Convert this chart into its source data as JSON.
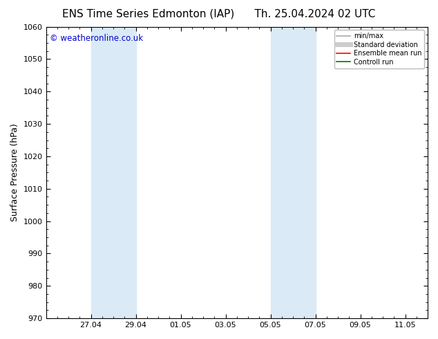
{
  "title_left": "ENS Time Series Edmonton (IAP)",
  "title_right": "Th. 25.04.2024 02 UTC",
  "ylabel": "Surface Pressure (hPa)",
  "ylim": [
    970,
    1060
  ],
  "yticks": [
    970,
    980,
    990,
    1000,
    1010,
    1020,
    1030,
    1040,
    1050,
    1060
  ],
  "xlim_start": 25.333,
  "xlim_end": 11.667,
  "xtick_labels": [
    "27.04",
    "29.04",
    "01.05",
    "03.05",
    "05.05",
    "07.05",
    "09.05",
    "11.05"
  ],
  "xtick_positions": [
    27.0,
    29.0,
    31.0,
    33.0,
    35.0,
    37.0,
    39.0,
    41.0
  ],
  "shaded_bands": [
    {
      "x_start": 27.0,
      "x_end": 29.0
    },
    {
      "x_start": 35.0,
      "x_end": 37.0
    }
  ],
  "shaded_color": "#daeaf7",
  "bg_color": "#ffffff",
  "plot_bg_color": "#ffffff",
  "watermark_text": "© weatheronline.co.uk",
  "watermark_color": "#0000cc",
  "legend_items": [
    {
      "label": "min/max",
      "color": "#aaaaaa",
      "lw": 1.2,
      "style": "solid"
    },
    {
      "label": "Standard deviation",
      "color": "#cccccc",
      "lw": 5,
      "style": "solid"
    },
    {
      "label": "Ensemble mean run",
      "color": "#ff0000",
      "lw": 1.2,
      "style": "solid"
    },
    {
      "label": "Controll run",
      "color": "#007700",
      "lw": 1.2,
      "style": "solid"
    }
  ],
  "tick_font_size": 8,
  "label_font_size": 9,
  "title_font_size": 11
}
